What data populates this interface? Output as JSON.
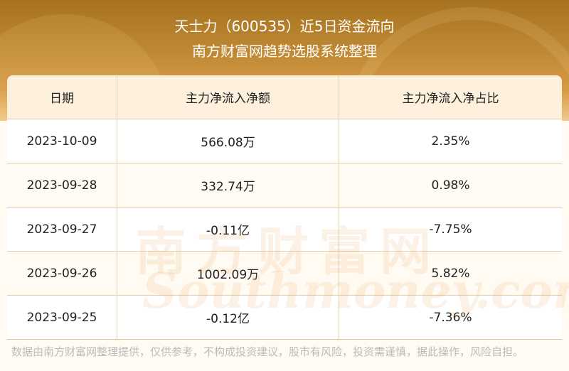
{
  "header": {
    "title": "天士力（600535）近5日资金流向",
    "subtitle": "南方财富网趋势选股系统整理"
  },
  "table": {
    "columns": [
      "日期",
      "主力净流入净额",
      "主力净流入净占比"
    ],
    "rows": [
      [
        "2023-10-09",
        "566.08万",
        "2.35%"
      ],
      [
        "2023-09-28",
        "332.74万",
        "0.98%"
      ],
      [
        "2023-09-27",
        "-0.11亿",
        "-7.75%"
      ],
      [
        "2023-09-26",
        "1002.09万",
        "5.82%"
      ],
      [
        "2023-09-25",
        "-0.12亿",
        "-7.36%"
      ]
    ]
  },
  "watermark": {
    "cn": "南方财富网",
    "en": "Southmoney.com"
  },
  "footer": "数据由南方财富网整理提供，仅供参考，不构成投资建议，股市有风险，投资需谨慎，据此操作，风险自担。",
  "colors": {
    "banner": "#b07b28",
    "header_bg": "#fdf0dc",
    "stripe": "#fffaf2",
    "border": "#e3cfae"
  }
}
